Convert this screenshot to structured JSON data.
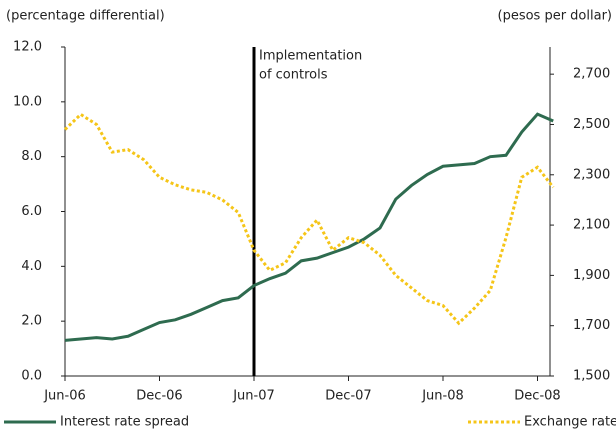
{
  "chart_data": {
    "type": "line",
    "y_label": "(percentage differential)",
    "y2_label": "(pesos per dollar)",
    "categories": [
      "Jun-06",
      null,
      null,
      null,
      null,
      null,
      "Dec-06",
      null,
      null,
      null,
      null,
      null,
      "Jun-07",
      null,
      null,
      null,
      null,
      null,
      "Dec-07",
      null,
      null,
      null,
      null,
      null,
      "Jun-08",
      null,
      null,
      null,
      null,
      null,
      "Dec-08",
      null
    ],
    "series": [
      {
        "name": "Interest rate spread",
        "color": "#2e6b4f",
        "axis": "y",
        "values": [
          1.3,
          1.35,
          1.4,
          1.35,
          1.45,
          1.7,
          1.95,
          2.05,
          2.25,
          2.5,
          2.75,
          2.85,
          3.3,
          3.55,
          3.75,
          4.2,
          4.3,
          4.5,
          4.7,
          5.0,
          5.4,
          6.45,
          6.95,
          7.35,
          7.65,
          7.7,
          7.75,
          8.0,
          8.05,
          8.9,
          9.55,
          9.3
        ]
      },
      {
        "name": "Exchange rate",
        "color": "#f5c518",
        "axis": "y2",
        "dash": "dotted",
        "values": [
          2480,
          2540,
          2500,
          2390,
          2400,
          2360,
          2290,
          2260,
          2240,
          2230,
          2200,
          2150,
          2000,
          1920,
          1950,
          2050,
          2120,
          2000,
          2050,
          2030,
          1980,
          1900,
          1850,
          1800,
          1780,
          1710,
          1770,
          1840,
          2050,
          2290,
          2330,
          2250
        ]
      }
    ],
    "ylim": [
      0,
      12
    ],
    "yticks": [
      {
        "value": 0,
        "label": "0.0"
      },
      {
        "value": 2,
        "label": "2.0"
      },
      {
        "value": 4,
        "label": "4.0"
      },
      {
        "value": 6,
        "label": "6.0"
      },
      {
        "value": 8,
        "label": "8.0"
      },
      {
        "value": 10,
        "label": "10.0"
      },
      {
        "value": 12,
        "label": "12.0"
      }
    ],
    "y2lim": [
      1500,
      2808
    ],
    "y2ticks": [
      {
        "value": 1500,
        "label": "1,500"
      },
      {
        "value": 1700,
        "label": "1,700"
      },
      {
        "value": 1900,
        "label": "1,900"
      },
      {
        "value": 2100,
        "label": "2,100"
      },
      {
        "value": 2300,
        "label": "2,300"
      },
      {
        "value": 2500,
        "label": "2,500"
      },
      {
        "value": 2700,
        "label": "2,700"
      }
    ],
    "annotation": {
      "text": [
        "Implementation",
        "of controls"
      ],
      "category": "Jun-07"
    }
  }
}
